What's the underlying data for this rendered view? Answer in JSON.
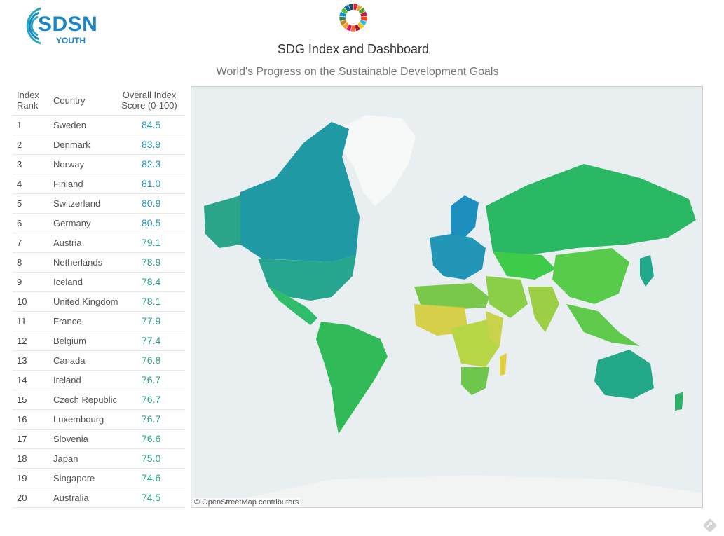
{
  "logo": {
    "main": "SDSN",
    "sub": "YOUTH"
  },
  "header": {
    "title": "SDG Index and Dashboard",
    "subtitle": "World's Progress on the Sustainable Development Goals"
  },
  "table": {
    "headers": {
      "rank": "Index Rank",
      "country": "Country",
      "score": "Overall Index Score (0-100)"
    },
    "rows": [
      {
        "rank": "1",
        "country": "Sweden",
        "score": "84.5"
      },
      {
        "rank": "2",
        "country": "Denmark",
        "score": "83.9"
      },
      {
        "rank": "3",
        "country": "Norway",
        "score": "82.3"
      },
      {
        "rank": "4",
        "country": "Finland",
        "score": "81.0"
      },
      {
        "rank": "5",
        "country": "Switzerland",
        "score": "80.9"
      },
      {
        "rank": "6",
        "country": "Germany",
        "score": "80.5"
      },
      {
        "rank": "7",
        "country": "Austria",
        "score": "79.1"
      },
      {
        "rank": "8",
        "country": "Netherlands",
        "score": "78.9"
      },
      {
        "rank": "9",
        "country": "Iceland",
        "score": "78.4"
      },
      {
        "rank": "10",
        "country": "United Kingdom",
        "score": "78.1"
      },
      {
        "rank": "11",
        "country": "France",
        "score": "77.9"
      },
      {
        "rank": "12",
        "country": "Belgium",
        "score": "77.4"
      },
      {
        "rank": "13",
        "country": "Canada",
        "score": "76.8"
      },
      {
        "rank": "14",
        "country": "Ireland",
        "score": "76.7"
      },
      {
        "rank": "15",
        "country": "Czech Republic",
        "score": "76.7"
      },
      {
        "rank": "16",
        "country": "Luxembourg",
        "score": "76.7"
      },
      {
        "rank": "17",
        "country": "Slovenia",
        "score": "76.6"
      },
      {
        "rank": "18",
        "country": "Japan",
        "score": "75.0"
      },
      {
        "rank": "19",
        "country": "Singapore",
        "score": "74.6"
      },
      {
        "rank": "20",
        "country": "Australia",
        "score": "74.5"
      }
    ]
  },
  "map": {
    "attribution": "© OpenStreetMap contributors"
  },
  "colors": {
    "brand": "#1a86c8",
    "score_high": "#2196b6",
    "score_mid": "#2a9d8f",
    "score_low": "#24a58a",
    "ocean": "#e9eef0",
    "land_none": "#f5f6f6"
  },
  "icons": {
    "corner": "share-icon"
  }
}
